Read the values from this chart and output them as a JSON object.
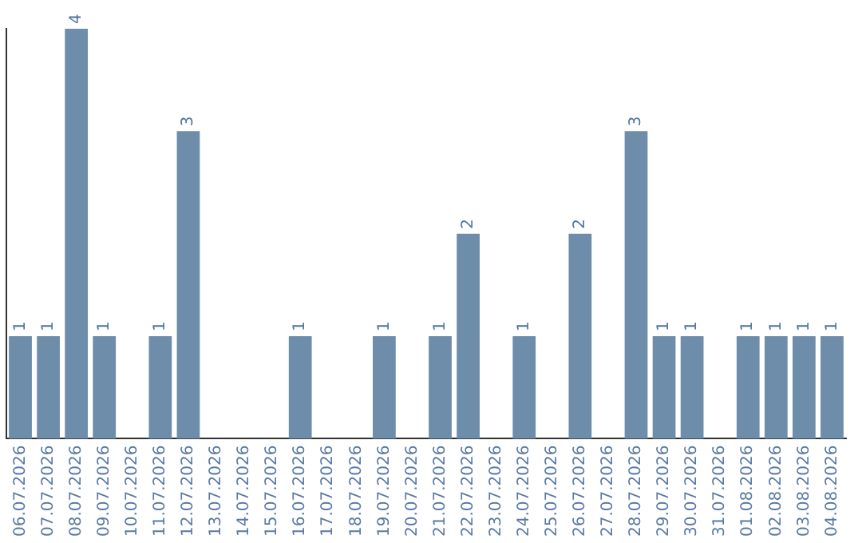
{
  "chart_data": {
    "type": "bar",
    "categories": [
      "06.07.2026",
      "07.07.2026",
      "08.07.2026",
      "09.07.2026",
      "10.07.2026",
      "11.07.2026",
      "12.07.2026",
      "13.07.2026",
      "14.07.2026",
      "15.07.2026",
      "16.07.2026",
      "17.07.2026",
      "18.07.2026",
      "19.07.2026",
      "20.07.2026",
      "21.07.2026",
      "22.07.2026",
      "23.07.2026",
      "24.07.2026",
      "25.07.2026",
      "26.07.2026",
      "27.07.2026",
      "28.07.2026",
      "29.07.2026",
      "30.07.2026",
      "31.07.2026",
      "01.08.2026",
      "02.08.2026",
      "03.08.2026",
      "04.08.2026"
    ],
    "values": [
      1,
      1,
      4,
      1,
      0,
      1,
      3,
      0,
      0,
      0,
      1,
      0,
      0,
      1,
      0,
      1,
      2,
      0,
      1,
      0,
      2,
      0,
      3,
      1,
      1,
      0,
      1,
      1,
      1,
      1
    ],
    "value_labels": [
      "1",
      "1",
      "4",
      "1",
      null,
      "1",
      "3",
      null,
      null,
      null,
      "1",
      null,
      null,
      "1",
      null,
      "1",
      "2",
      null,
      "1",
      null,
      "2",
      null,
      "3",
      "1",
      "1",
      null,
      "1",
      "1",
      "1",
      "1"
    ],
    "color": "#6d8dab",
    "ylim": [
      0,
      4
    ],
    "tick_labels": "x",
    "grid": false,
    "legend": false
  }
}
